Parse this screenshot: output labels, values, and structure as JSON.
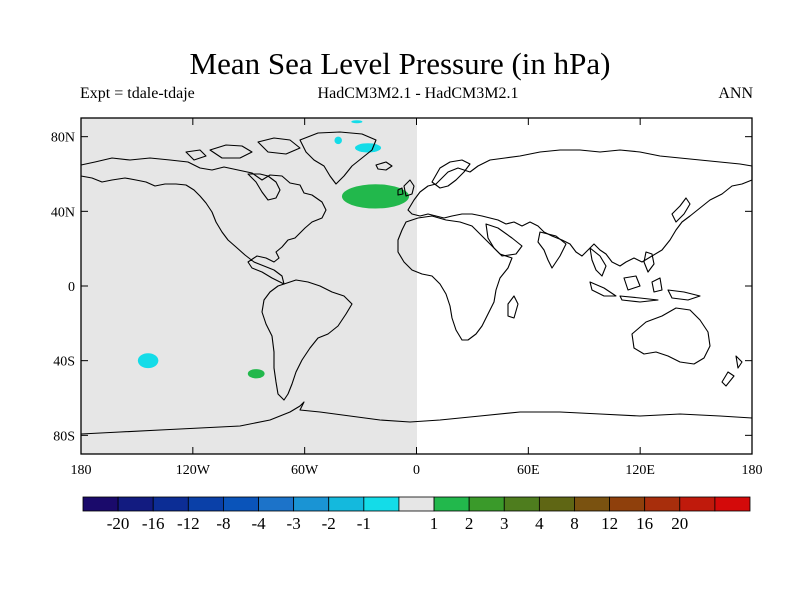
{
  "title": "Mean Sea Level Pressure (in hPa)",
  "experiment": "Expt = tdale-tdaje",
  "models": "HadCM3M2.1 - HadCM3M2.1",
  "season": "ANN",
  "axes": {
    "lat_ticks": [
      "80N",
      "40N",
      "0",
      "40S",
      "80S"
    ],
    "lon_ticks": [
      "180",
      "120W",
      "60W",
      "0",
      "60E",
      "120E",
      "180"
    ]
  },
  "colorbar": {
    "colors": [
      "#1a0a6b",
      "#121b80",
      "#0c2d95",
      "#0a40a8",
      "#0a54ba",
      "#1c73c9",
      "#1a94d4",
      "#14b9dd",
      "#14dce8",
      "#e6e6e6",
      "#22b84c",
      "#3a9a2a",
      "#4e7d1e",
      "#5f6614",
      "#7a5210",
      "#8f400c",
      "#a82e0c",
      "#c01a0c",
      "#d40a0a"
    ],
    "labels": [
      "-20",
      "-16",
      "-12",
      "-8",
      "-4",
      "-3",
      "-2",
      "-1",
      "1",
      "2",
      "3",
      "4",
      "8",
      "12",
      "16",
      "20"
    ]
  },
  "map": {
    "missing_region_color": "#e6e6e6",
    "anomalies": [
      {
        "lon": -22,
        "lat": 48,
        "rx_deg": 18,
        "ry_deg": 6.5,
        "color": "#22b84c"
      },
      {
        "lon": -26,
        "lat": 74,
        "rx_deg": 7,
        "ry_deg": 2.5,
        "color": "#14dce8"
      },
      {
        "lon": -42,
        "lat": 78,
        "rx_deg": 2,
        "ry_deg": 2,
        "color": "#14dce8"
      },
      {
        "lon": -32,
        "lat": 88,
        "rx_deg": 3,
        "ry_deg": 0.8,
        "color": "#14dce8"
      },
      {
        "lon": -144,
        "lat": -40,
        "rx_deg": 5.5,
        "ry_deg": 4,
        "color": "#14dce8"
      },
      {
        "lon": -86,
        "lat": -47,
        "rx_deg": 4.5,
        "ry_deg": 2.5,
        "color": "#22b84c"
      }
    ]
  }
}
